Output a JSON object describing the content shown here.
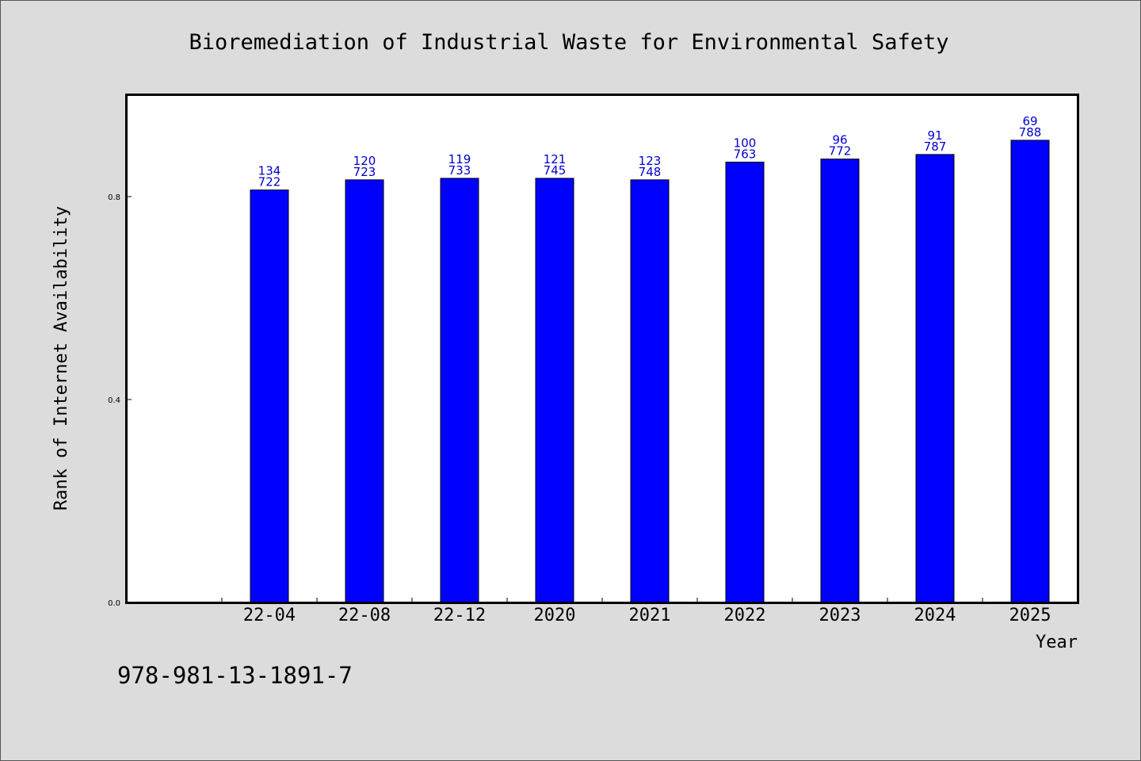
{
  "chart_data": {
    "type": "bar",
    "title": "Bioremediation of Industrial Waste for Environmental Safety",
    "xlabel": "Year",
    "ylabel": "Rank of Internet Availability",
    "ylim": [
      0.0,
      1.0
    ],
    "yticks": [
      {
        "value": 0.0,
        "label": "0.0"
      },
      {
        "value": 0.4,
        "label": "0.4"
      },
      {
        "value": 0.8,
        "label": "0.8"
      }
    ],
    "categories": [
      "22-04",
      "22-08",
      "22-12",
      "2020",
      "2021",
      "2022",
      "2023",
      "2024",
      "2025"
    ],
    "values": [
      0.813,
      0.833,
      0.836,
      0.836,
      0.833,
      0.868,
      0.874,
      0.883,
      0.911
    ],
    "label_top": [
      "134",
      "120",
      "119",
      "121",
      "123",
      "100",
      "96",
      "91",
      "69"
    ],
    "label_bottom": [
      "722",
      "723",
      "733",
      "745",
      "748",
      "763",
      "772",
      "787",
      "788"
    ],
    "bar_color": "#0000ff",
    "label_color": "#0000cc",
    "grid": false,
    "legend": "none"
  },
  "footer": {
    "text": "978-981-13-1891-7"
  }
}
